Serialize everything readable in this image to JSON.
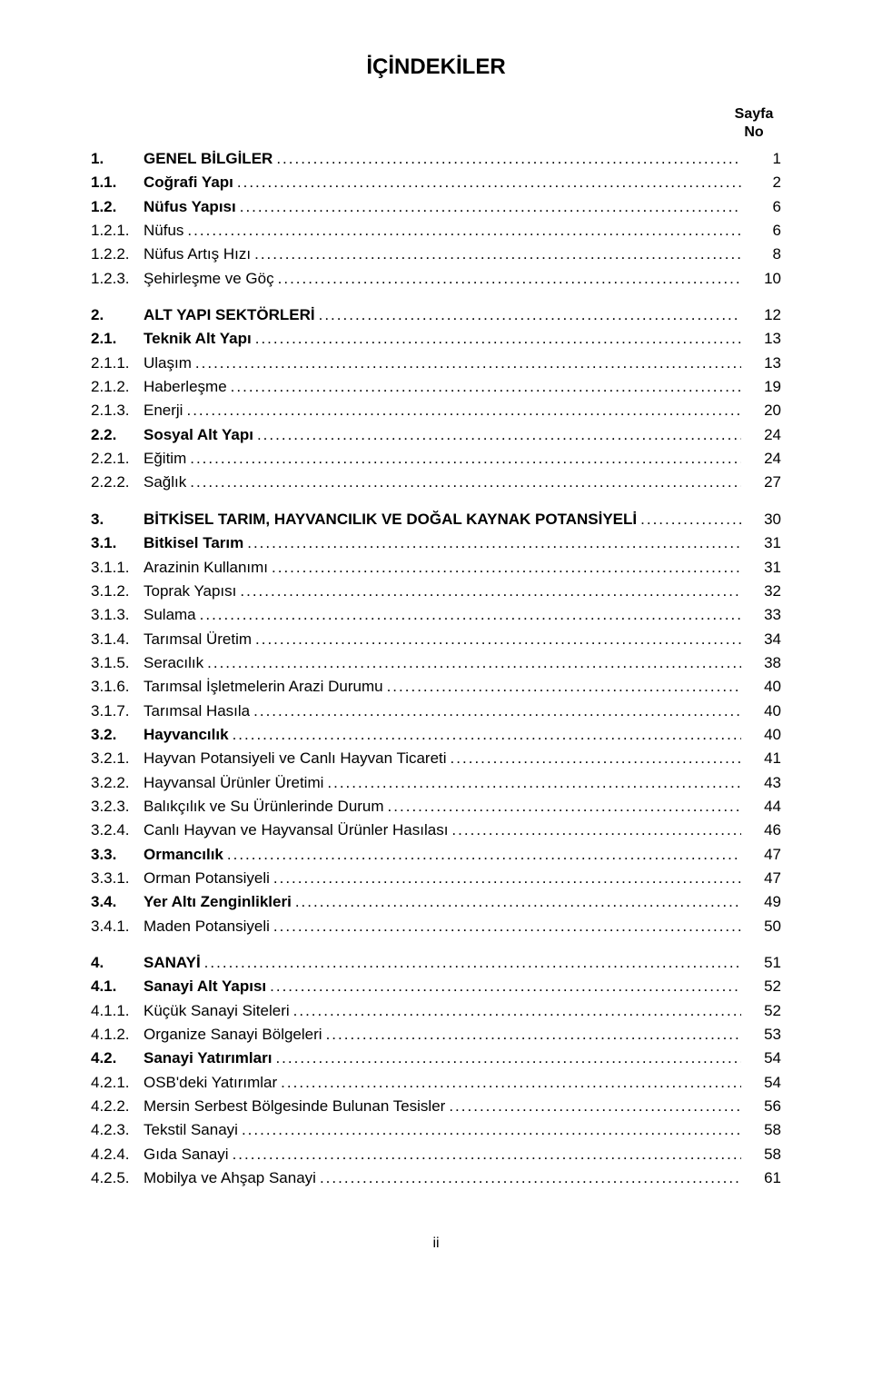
{
  "title": "İÇİNDEKİLER",
  "page_header": "Sayfa\nNo",
  "footer": "ii",
  "entries": [
    {
      "num": "1.",
      "label": "GENEL BİLGİLER",
      "page": "1",
      "bold": true,
      "gap_before": false
    },
    {
      "num": "1.1.",
      "label": "Coğrafi Yapı",
      "page": "2",
      "bold": true
    },
    {
      "num": "1.2.",
      "label": "Nüfus Yapısı",
      "page": "6",
      "bold": true
    },
    {
      "num": "1.2.1.",
      "label": "Nüfus",
      "page": "6",
      "bold": false
    },
    {
      "num": "1.2.2.",
      "label": "Nüfus Artış Hızı",
      "page": "8",
      "bold": false
    },
    {
      "num": "1.2.3.",
      "label": "Şehirleşme ve Göç",
      "page": "10",
      "bold": false
    },
    {
      "num": "2.",
      "label": "ALT YAPI SEKTÖRLERİ",
      "page": "12",
      "bold": true,
      "gap_before": true
    },
    {
      "num": "2.1.",
      "label": "Teknik Alt Yapı",
      "page": "13",
      "bold": true
    },
    {
      "num": "2.1.1.",
      "label": "Ulaşım",
      "page": "13",
      "bold": false
    },
    {
      "num": "2.1.2.",
      "label": "Haberleşme",
      "page": "19",
      "bold": false
    },
    {
      "num": "2.1.3.",
      "label": "Enerji",
      "page": "20",
      "bold": false
    },
    {
      "num": "2.2.",
      "label": "Sosyal Alt Yapı",
      "page": "24",
      "bold": true
    },
    {
      "num": "2.2.1.",
      "label": "Eğitim",
      "page": "24",
      "bold": false
    },
    {
      "num": "2.2.2.",
      "label": "Sağlık",
      "page": "27",
      "bold": false
    },
    {
      "num": "3.",
      "label": "BİTKİSEL TARIM, HAYVANCILIK VE DOĞAL KAYNAK POTANSİYELİ",
      "page": "30",
      "bold": true,
      "gap_before": true
    },
    {
      "num": "3.1.",
      "label": "Bitkisel Tarım",
      "page": "31",
      "bold": true
    },
    {
      "num": "3.1.1.",
      "label": "Arazinin Kullanımı",
      "page": "31",
      "bold": false
    },
    {
      "num": "3.1.2.",
      "label": "Toprak Yapısı",
      "page": "32",
      "bold": false
    },
    {
      "num": "3.1.3.",
      "label": "Sulama",
      "page": "33",
      "bold": false
    },
    {
      "num": "3.1.4.",
      "label": "Tarımsal Üretim",
      "page": "34",
      "bold": false
    },
    {
      "num": "3.1.5.",
      "label": "Seracılık",
      "page": "38",
      "bold": false
    },
    {
      "num": "3.1.6.",
      "label": "Tarımsal İşletmelerin Arazi Durumu",
      "page": "40",
      "bold": false
    },
    {
      "num": "3.1.7.",
      "label": "Tarımsal Hasıla",
      "page": "40",
      "bold": false
    },
    {
      "num": "3.2.",
      "label": "Hayvancılık",
      "page": "40",
      "bold": true
    },
    {
      "num": "3.2.1.",
      "label": "Hayvan Potansiyeli ve Canlı Hayvan Ticareti",
      "page": "41",
      "bold": false
    },
    {
      "num": "3.2.2.",
      "label": "Hayvansal Ürünler Üretimi",
      "page": "43",
      "bold": false
    },
    {
      "num": "3.2.3.",
      "label": "Balıkçılık ve Su Ürünlerinde Durum",
      "page": "44",
      "bold": false
    },
    {
      "num": "3.2.4.",
      "label": "Canlı Hayvan ve Hayvansal Ürünler Hasılası",
      "page": "46",
      "bold": false
    },
    {
      "num": "3.3.",
      "label": "Ormancılık",
      "page": "47",
      "bold": true
    },
    {
      "num": "3.3.1.",
      "label": "Orman Potansiyeli",
      "page": "47",
      "bold": false
    },
    {
      "num": "3.4.",
      "label": "Yer Altı Zenginlikleri",
      "page": "49",
      "bold": true
    },
    {
      "num": "3.4.1.",
      "label": "Maden Potansiyeli",
      "page": "50",
      "bold": false
    },
    {
      "num": "4.",
      "label": "SANAYİ",
      "page": "51",
      "bold": true,
      "gap_before": true
    },
    {
      "num": "4.1.",
      "label": "Sanayi Alt Yapısı",
      "page": "52",
      "bold": true
    },
    {
      "num": "4.1.1.",
      "label": "Küçük Sanayi Siteleri",
      "page": "52",
      "bold": false
    },
    {
      "num": "4.1.2.",
      "label": "Organize Sanayi Bölgeleri",
      "page": "53",
      "bold": false
    },
    {
      "num": "4.2.",
      "label": "Sanayi Yatırımları",
      "page": "54",
      "bold": true
    },
    {
      "num": "4.2.1.",
      "label": "OSB'deki Yatırımlar",
      "page": "54",
      "bold": false
    },
    {
      "num": "4.2.2.",
      "label": "Mersin Serbest Bölgesinde Bulunan Tesisler",
      "page": "56",
      "bold": false
    },
    {
      "num": "4.2.3.",
      "label": "Tekstil Sanayi",
      "page": "58",
      "bold": false
    },
    {
      "num": "4.2.4.",
      "label": "Gıda Sanayi",
      "page": "58",
      "bold": false
    },
    {
      "num": "4.2.5.",
      "label": "Mobilya ve Ahşap Sanayi",
      "page": "61",
      "bold": false
    }
  ]
}
